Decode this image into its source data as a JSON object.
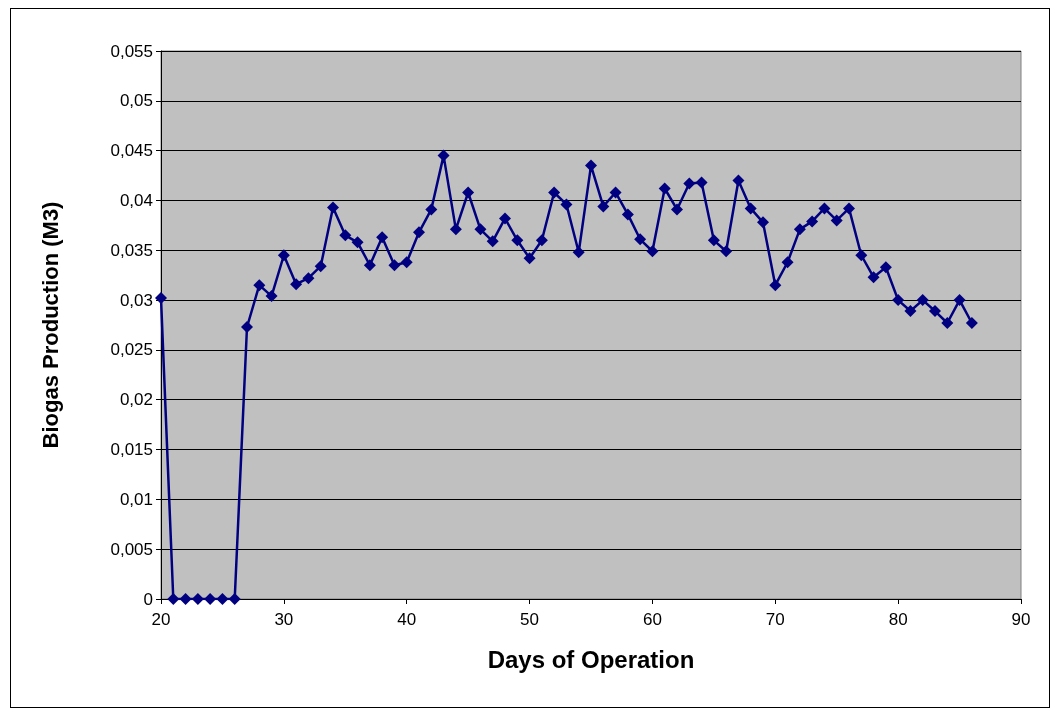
{
  "chart_data": {
    "type": "line",
    "xlabel": "Days of Operation",
    "ylabel": "Biogas Production (M3)",
    "x": [
      20,
      21,
      22,
      23,
      24,
      25,
      26,
      27,
      28,
      29,
      30,
      31,
      32,
      33,
      34,
      35,
      36,
      37,
      38,
      39,
      40,
      41,
      42,
      43,
      44,
      45,
      46,
      47,
      48,
      49,
      50,
      51,
      52,
      53,
      54,
      55,
      56,
      57,
      58,
      59,
      60,
      61,
      62,
      63,
      64,
      65,
      66,
      67,
      68,
      69,
      70,
      71,
      72,
      73,
      74,
      75,
      76,
      77,
      78,
      79,
      80,
      81,
      82,
      83,
      84,
      85,
      86
    ],
    "series": [
      {
        "color": "#000080",
        "values": [
          0.0302,
          0,
          0,
          0,
          0,
          0,
          0,
          0.0273,
          0.0315,
          0.0304,
          0.0345,
          0.0316,
          0.0322,
          0.0334,
          0.0393,
          0.0365,
          0.0358,
          0.0335,
          0.0363,
          0.0335,
          0.0338,
          0.0368,
          0.0391,
          0.0445,
          0.0371,
          0.0408,
          0.0371,
          0.0359,
          0.0382,
          0.036,
          0.0342,
          0.036,
          0.0408,
          0.0396,
          0.0348,
          0.0435,
          0.0394,
          0.0408,
          0.0386,
          0.0361,
          0.0349,
          0.0412,
          0.0391,
          0.0417,
          0.0418,
          0.036,
          0.0349,
          0.042,
          0.0392,
          0.0378,
          0.0315,
          0.0338,
          0.0371,
          0.0379,
          0.0392,
          0.038,
          0.0392,
          0.0345,
          0.0323,
          0.0333,
          0.03,
          0.0289,
          0.03,
          0.0289,
          0.0277,
          0.03,
          0.0277
        ]
      }
    ],
    "xlim": [
      20,
      90
    ],
    "xticks": [
      20,
      30,
      40,
      50,
      60,
      70,
      80,
      90
    ],
    "ylim": [
      0,
      0.055
    ],
    "yticks": [
      0,
      {
        "value": 0.005,
        "label": "0,005"
      },
      {
        "value": 0.01,
        "label": "0,01"
      },
      {
        "value": 0.015,
        "label": "0,015"
      },
      {
        "value": 0.02,
        "label": "0,02"
      },
      {
        "value": 0.025,
        "label": "0,025"
      },
      {
        "value": 0.03,
        "label": "0,03"
      },
      {
        "value": 0.035,
        "label": "0,035"
      },
      {
        "value": 0.04,
        "label": "0,04"
      },
      {
        "value": 0.045,
        "label": "0,045"
      },
      {
        "value": 0.05,
        "label": "0,05"
      },
      {
        "value": 0.055,
        "label": "0,055"
      }
    ],
    "grid": "y",
    "marker": "diamond",
    "line_style": "solid"
  }
}
